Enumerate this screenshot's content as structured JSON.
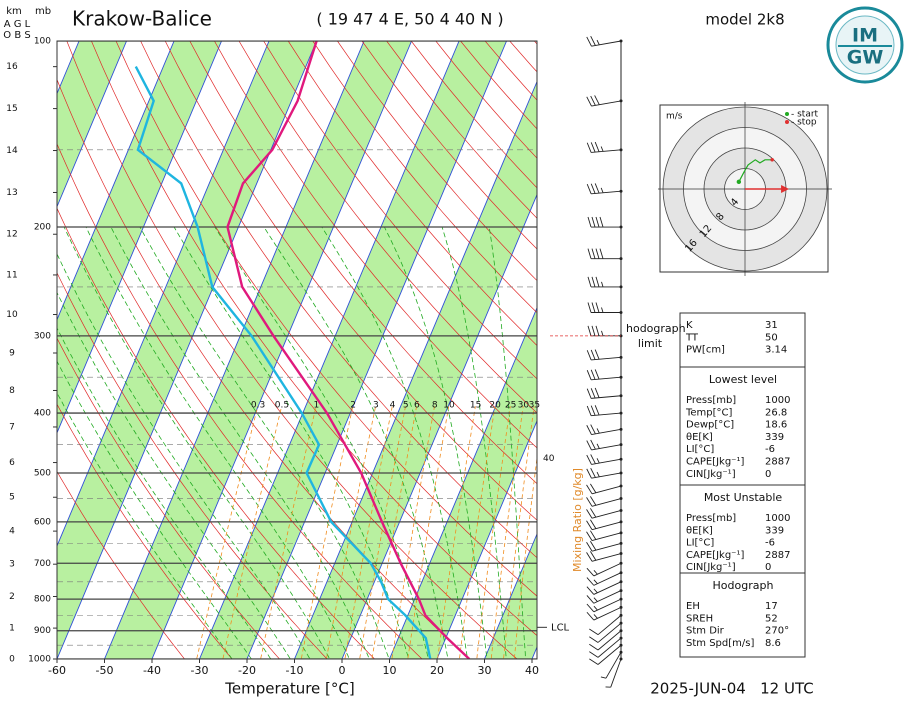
{
  "chart_data": {
    "type": "skew-t",
    "title": "Krakow-Balice",
    "subtitle": "( 19 47 4 E, 50 4 40 N )",
    "model_label": "model 2k8",
    "valid_time": "2025-JUN-04   12 UTC",
    "logo": [
      "IM",
      "GW"
    ],
    "xlabel": "Temperature [°C]",
    "xlim": [
      -60,
      40
    ],
    "xticks": [
      -60,
      -50,
      -40,
      -30,
      -20,
      -10,
      0,
      10,
      20,
      30,
      40
    ],
    "pressure_unit": "mb",
    "log_scale": true,
    "ylim": [
      1000,
      100
    ],
    "yticks": [
      1000,
      900,
      800,
      700,
      600,
      500,
      400,
      300,
      200,
      100
    ],
    "altitude_label": "km",
    "altitude_sublabels": [
      "A G L",
      "O B S"
    ],
    "altitude_ticks": [
      0,
      1,
      2,
      3,
      4,
      5,
      6,
      7,
      8,
      9,
      10,
      11,
      12,
      13,
      14,
      15,
      16
    ],
    "series": [
      {
        "color": "#e0197d",
        "pressure": [
          1000,
          925,
          850,
          800,
          700,
          600,
          500,
          400,
          300,
          250,
          200,
          170,
          150,
          125,
          100
        ],
        "values": [
          26.8,
          20.3,
          13.7,
          10.9,
          3.9,
          -3.7,
          -12.4,
          -24.9,
          -43,
          -53.9,
          -62.3,
          -62.9,
          -59.7,
          -58.7,
          -60
        ]
      },
      {
        "color": "#1fb5e0",
        "pressure": [
          1000,
          925,
          850,
          800,
          750,
          700,
          600,
          500,
          450,
          400,
          300,
          250,
          200,
          170,
          150,
          125,
          110
        ],
        "values": [
          18.6,
          15.8,
          9.5,
          4.4,
          1.4,
          -2.4,
          -14.4,
          -23.9,
          -23.8,
          -30.2,
          -47.6,
          -60.2,
          -68.6,
          -75.9,
          -88,
          -89,
          -95.8
        ]
      }
    ],
    "mixing_ratio": {
      "label": "Mixing Ratio [g/kg]",
      "color": "#f08c1e",
      "values": [
        0.3,
        0.5,
        1,
        2,
        3,
        4,
        5,
        6,
        8,
        10,
        15,
        20,
        25,
        30,
        35,
        40
      ]
    },
    "lcl_label": "LCL",
    "hodograph_limit": {
      "label": [
        "hodograph",
        "limit"
      ],
      "pressure": 300
    },
    "wind": {
      "pressure": [
        100,
        125,
        150,
        175,
        200,
        225,
        250,
        275,
        300,
        325,
        350,
        375,
        400,
        425,
        450,
        475,
        500,
        525,
        550,
        575,
        600,
        625,
        650,
        675,
        700,
        725,
        750,
        775,
        800,
        825,
        850,
        875,
        900,
        925,
        950,
        975,
        1000
      ],
      "speed": [
        25,
        30,
        35,
        35,
        40,
        40,
        35,
        35,
        35,
        30,
        30,
        30,
        30,
        25,
        25,
        25,
        25,
        20,
        20,
        20,
        20,
        20,
        20,
        20,
        15,
        15,
        15,
        15,
        15,
        15,
        10,
        10,
        10,
        10,
        10,
        5,
        5
      ],
      "direction": [
        260,
        260,
        265,
        265,
        270,
        270,
        270,
        270,
        270,
        265,
        265,
        265,
        265,
        260,
        260,
        260,
        260,
        255,
        255,
        255,
        255,
        255,
        255,
        255,
        245,
        245,
        245,
        245,
        245,
        245,
        230,
        230,
        230,
        230,
        230,
        210,
        200
      ]
    },
    "hodograph": {
      "unit": "m/s",
      "rings": [
        4,
        8,
        12,
        16
      ],
      "legend": [
        "- start",
        "- stop"
      ],
      "u": [
        -1.2,
        -0.2,
        0.6,
        2,
        2.9,
        3.9,
        5.3
      ],
      "v": [
        1.4,
        3.3,
        4.7,
        5.7,
        5.1,
        5.7,
        5.7
      ]
    },
    "indices": [
      {
        "rows": [
          [
            "K",
            31
          ],
          [
            "TT",
            50
          ],
          [
            "PW[cm]",
            3.14
          ]
        ]
      },
      {
        "title": "Lowest level",
        "rows": [
          [
            "Press[mb]",
            1000
          ],
          [
            "Temp[°C]",
            26.8
          ],
          [
            "Dewp[°C]",
            18.6
          ],
          [
            "θE[K]",
            339
          ],
          [
            "LI[°C]",
            -6
          ],
          [
            "CAPE[Jkg⁻¹]",
            2887
          ],
          [
            "CIN[Jkg⁻¹]",
            0
          ]
        ]
      },
      {
        "title": "Most Unstable",
        "rows": [
          [
            "Press[mb]",
            1000
          ],
          [
            "θE[K]",
            339
          ],
          [
            "LI[°C]",
            -6
          ],
          [
            "CAPE[Jkg⁻¹]",
            2887
          ],
          [
            "CIN[Jkg⁻¹]",
            0
          ]
        ]
      },
      {
        "title": "Hodograph",
        "rows": [
          [
            "EH",
            17
          ],
          [
            "SREH",
            52
          ],
          [
            "Stm Dir",
            {
              "value": 270,
              "label": "270°"
            }
          ],
          [
            "Stm Spd[m/s]",
            8.6
          ]
        ]
      }
    ]
  }
}
